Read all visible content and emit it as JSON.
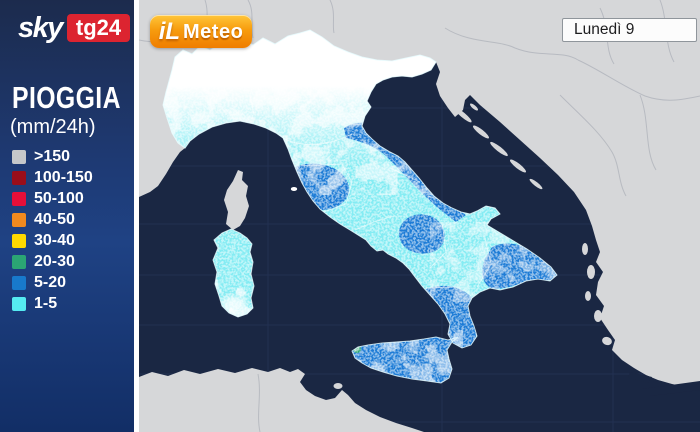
{
  "brand": {
    "sky": "sky",
    "tg24": "tg24",
    "ilmeteo_il": "iL",
    "ilmeteo_meteo": "Meteo"
  },
  "date_box": {
    "label": "Lunedì 9"
  },
  "legend": {
    "title": "PIOGGIA",
    "subtitle": "(mm/24h)",
    "items": [
      {
        "label": ">150",
        "color": "#c6c8ca"
      },
      {
        "label": "100-150",
        "color": "#9a0e1a"
      },
      {
        "label": "50-100",
        "color": "#e60f39"
      },
      {
        "label": "40-50",
        "color": "#f18a1f"
      },
      {
        "label": "30-40",
        "color": "#ffd900"
      },
      {
        "label": "20-30",
        "color": "#2ba574"
      },
      {
        "label": "5-20",
        "color": "#1879cb"
      },
      {
        "label": "1-5",
        "color": "#55ecf2"
      }
    ]
  },
  "colors": {
    "sea": "#1a2743",
    "other_land": "#d6d7d9",
    "land_border": "#b6b9c0",
    "italy_base": "#84ecf3",
    "rain_blue": "#1e7cd6",
    "rain_green": "#2aa873",
    "sidebar_top": "#1c2b4d",
    "sidebar_mid": "#1f4284",
    "sidebar_bottom": "#122e66",
    "sky_red": "#dc2430",
    "ilmeteo_orange_top": "#ffc63a",
    "ilmeteo_orange_bottom": "#ef7d00"
  }
}
